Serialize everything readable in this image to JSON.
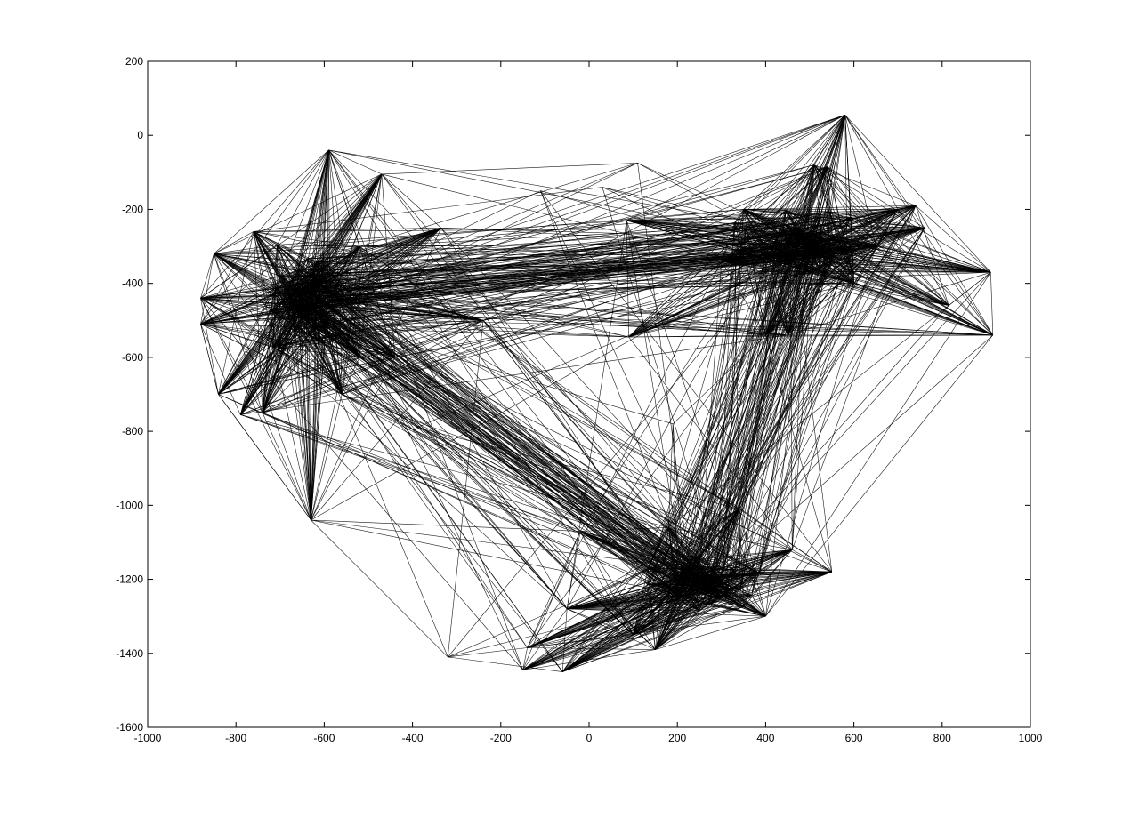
{
  "chart_data": {
    "type": "scatter",
    "title": "",
    "xlabel": "",
    "ylabel": "",
    "xlim": [
      -1000,
      1000
    ],
    "ylim": [
      -1600,
      200
    ],
    "grid": false,
    "xticks": [
      -1000,
      -800,
      -600,
      -400,
      -200,
      0,
      200,
      400,
      600,
      800,
      1000
    ],
    "yticks": [
      200,
      0,
      -200,
      -400,
      -600,
      -800,
      -1000,
      -1200,
      -1400,
      -1600
    ],
    "xtick_labels": [
      "-1000",
      "-800",
      "-600",
      "-400",
      "-200",
      "0",
      "200",
      "400",
      "600",
      "800",
      "1000"
    ],
    "ytick_labels": [
      "200",
      "0",
      "-200",
      "-400",
      "-600",
      "-800",
      "-1000",
      "-1200",
      "-1400",
      "-1600"
    ],
    "line_color": "#000000",
    "background_color": "#ffffff",
    "clusters": [
      {
        "center": [
          -650,
          -450
        ],
        "nodes": [
          [
            -590,
            -40
          ],
          [
            -470,
            -105
          ],
          [
            -335,
            -250
          ],
          [
            -880,
            -440
          ],
          [
            -850,
            -320
          ],
          [
            -880,
            -510
          ],
          [
            -840,
            -700
          ],
          [
            -790,
            -755
          ],
          [
            -740,
            -750
          ],
          [
            -630,
            -1040
          ],
          [
            -520,
            -600
          ],
          [
            -440,
            -600
          ],
          [
            -240,
            -500
          ],
          [
            -700,
            -380
          ],
          [
            -620,
            -520
          ],
          [
            -760,
            -260
          ],
          [
            -560,
            -700
          ],
          [
            -520,
            -300
          ]
        ]
      },
      {
        "center": [
          480,
          -290
        ],
        "nodes": [
          [
            580,
            55
          ],
          [
            510,
            -80
          ],
          [
            540,
            -85
          ],
          [
            740,
            -190
          ],
          [
            700,
            -200
          ],
          [
            910,
            -370
          ],
          [
            915,
            -540
          ],
          [
            815,
            -460
          ],
          [
            760,
            -250
          ],
          [
            450,
            -540
          ],
          [
            400,
            -540
          ],
          [
            90,
            -545
          ],
          [
            85,
            -230
          ],
          [
            300,
            -340
          ],
          [
            500,
            -300
          ],
          [
            600,
            -400
          ],
          [
            350,
            -200
          ],
          [
            650,
            -300
          ]
        ]
      },
      {
        "center": [
          250,
          -1220
        ],
        "nodes": [
          [
            -20,
            -1070
          ],
          [
            -50,
            -1280
          ],
          [
            -140,
            -1385
          ],
          [
            -150,
            -1445
          ],
          [
            -60,
            -1450
          ],
          [
            150,
            -1390
          ],
          [
            400,
            -1300
          ],
          [
            550,
            -1180
          ],
          [
            460,
            -1120
          ],
          [
            340,
            -1010
          ],
          [
            180,
            -1060
          ],
          [
            300,
            -1250
          ],
          [
            200,
            -1200
          ],
          [
            100,
            -1350
          ],
          [
            380,
            -1180
          ]
        ]
      }
    ],
    "isolated_nodes": [
      [
        -320,
        -1410
      ],
      [
        110,
        -75
      ],
      [
        -110,
        -150
      ],
      [
        30,
        -140
      ],
      [
        -390,
        -790
      ],
      [
        190,
        -780
      ]
    ]
  }
}
